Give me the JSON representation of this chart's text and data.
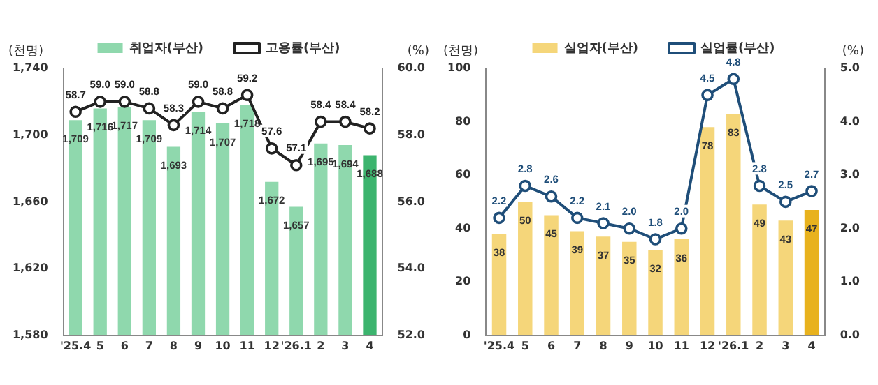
{
  "chart_data": [
    {
      "type": "bar",
      "ylabel": "(천명)",
      "y2label": "(%)",
      "legend": "top",
      "marker": "circle",
      "grid": false,
      "categories": [
        "'25.4",
        "5",
        "6",
        "7",
        "8",
        "9",
        "10",
        "11",
        "12",
        "'26.1",
        "2",
        "3",
        "4"
      ],
      "ylim": [
        1580,
        1740
      ],
      "yticks": [
        {
          "value": 1580,
          "label": "1,580"
        },
        {
          "value": 1620,
          "label": "1,620"
        },
        {
          "value": 1660,
          "label": "1,660"
        },
        {
          "value": 1700,
          "label": "1,700"
        },
        {
          "value": 1740,
          "label": "1,740"
        }
      ],
      "y2lim": [
        52,
        60
      ],
      "y2ticks": [
        {
          "value": 52,
          "label": "52.0"
        },
        {
          "value": 54,
          "label": "54.0"
        },
        {
          "value": 56,
          "label": "56.0"
        },
        {
          "value": 58,
          "label": "58.0"
        },
        {
          "value": 60,
          "label": "60.0"
        }
      ],
      "series": [
        {
          "name": "취업자(부산)",
          "colors": [
            "#8fd8ad",
            "#8fd8ad",
            "#8fd8ad",
            "#8fd8ad",
            "#8fd8ad",
            "#8fd8ad",
            "#8fd8ad",
            "#8fd8ad",
            "#8fd8ad",
            "#8fd8ad",
            "#8fd8ad",
            "#8fd8ad",
            "#3cb46e"
          ],
          "values": [
            1709,
            1716,
            1717,
            1709,
            1693,
            1714,
            1707,
            1718,
            1672,
            1657,
            1695,
            1694,
            1688
          ],
          "value_labels": [
            "1,709",
            "1,716",
            "1,717",
            "1,709",
            "1,693",
            "1,714",
            "1,707",
            "1,718",
            "1,672",
            "1,657",
            "1,695",
            "1,694",
            "1,688"
          ]
        },
        {
          "name": "고용률(부산)",
          "type": "line",
          "axis": "y2",
          "color": "#222222",
          "values": [
            58.7,
            59.0,
            59.0,
            58.8,
            58.3,
            59.0,
            58.8,
            59.2,
            57.6,
            57.1,
            58.4,
            58.4,
            58.2
          ],
          "value_labels": [
            "58.7",
            "59.0",
            "59.0",
            "58.8",
            "58.3",
            "59.0",
            "58.8",
            "59.2",
            "57.6",
            "57.1",
            "58.4",
            "58.4",
            "58.2"
          ]
        }
      ]
    },
    {
      "type": "bar",
      "ylabel": "(천명)",
      "y2label": "(%)",
      "legend": "top",
      "marker": "circle",
      "grid": false,
      "categories": [
        "'25.4",
        "5",
        "6",
        "7",
        "8",
        "9",
        "10",
        "11",
        "12",
        "'26.1",
        "2",
        "3",
        "4"
      ],
      "ylim": [
        0,
        100
      ],
      "yticks": [
        0,
        20,
        40,
        60,
        80,
        100
      ],
      "y2lim": [
        0,
        5
      ],
      "y2ticks": [
        {
          "value": 0,
          "label": "0.0"
        },
        {
          "value": 1,
          "label": "1.0"
        },
        {
          "value": 2,
          "label": "2.0"
        },
        {
          "value": 3,
          "label": "3.0"
        },
        {
          "value": 4,
          "label": "4.0"
        },
        {
          "value": 5,
          "label": "5.0"
        }
      ],
      "series": [
        {
          "name": "실업자(부산)",
          "colors": [
            "#f5d67a",
            "#f5d67a",
            "#f5d67a",
            "#f5d67a",
            "#f5d67a",
            "#f5d67a",
            "#f5d67a",
            "#f5d67a",
            "#f5d67a",
            "#f5d67a",
            "#f5d67a",
            "#f5d67a",
            "#e8b21e"
          ],
          "values": [
            38,
            50,
            45,
            39,
            37,
            35,
            32,
            36,
            78,
            83,
            49,
            43,
            47
          ],
          "value_labels": [
            "38",
            "50",
            "45",
            "39",
            "37",
            "35",
            "32",
            "36",
            "78",
            "83",
            "49",
            "43",
            "47"
          ]
        },
        {
          "name": "실업률(부산)",
          "type": "line",
          "axis": "y2",
          "color": "#1f4e79",
          "values": [
            2.2,
            2.8,
            2.6,
            2.2,
            2.1,
            2.0,
            1.8,
            2.0,
            4.5,
            4.8,
            2.8,
            2.5,
            2.7
          ],
          "value_labels": [
            "2.2",
            "2.8",
            "2.6",
            "2.2",
            "2.1",
            "2.0",
            "1.8",
            "2.0",
            "4.5",
            "4.8",
            "2.8",
            "2.5",
            "2.7"
          ]
        }
      ]
    }
  ]
}
